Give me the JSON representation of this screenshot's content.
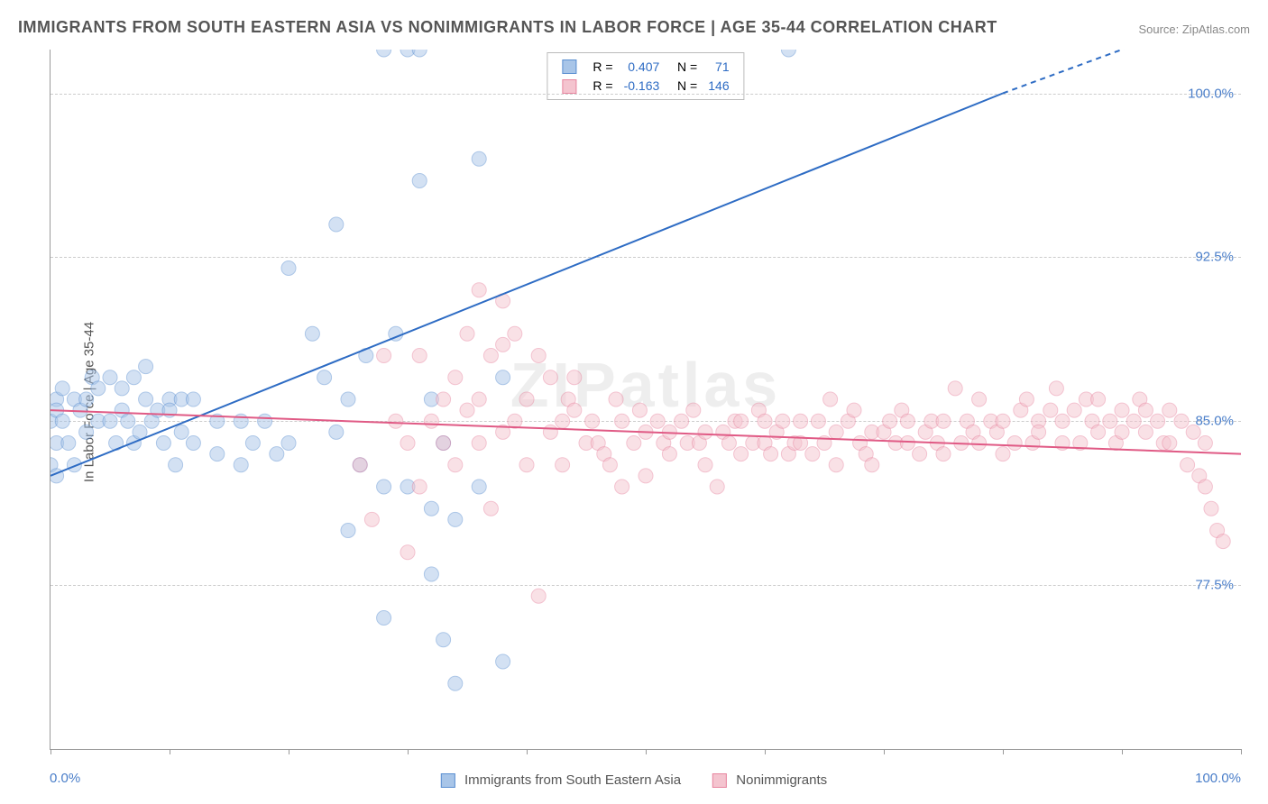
{
  "title": "IMMIGRANTS FROM SOUTH EASTERN ASIA VS NONIMMIGRANTS IN LABOR FORCE | AGE 35-44 CORRELATION CHART",
  "source": "Source: ZipAtlas.com",
  "watermark": "ZIPatlas",
  "ylabel": "In Labor Force | Age 35-44",
  "chart": {
    "type": "scatter-correlation",
    "xlim": [
      0,
      100
    ],
    "ylim": [
      70,
      102
    ],
    "xticks": [
      0,
      10,
      20,
      30,
      40,
      50,
      60,
      70,
      80,
      90,
      100
    ],
    "yticks": [
      {
        "v": 77.5,
        "label": "77.5%"
      },
      {
        "v": 85.0,
        "label": "85.0%"
      },
      {
        "v": 92.5,
        "label": "92.5%"
      },
      {
        "v": 100.0,
        "label": "100.0%"
      }
    ],
    "xaxis_label_left": "0.0%",
    "xaxis_label_right": "100.0%",
    "background_color": "#ffffff",
    "grid_color": "#cccccc",
    "marker_radius": 8,
    "marker_opacity": 0.5,
    "line_width": 2,
    "series": [
      {
        "name": "Immigrants from South Eastern Asia",
        "color_fill": "#a8c5e8",
        "color_stroke": "#5b8fd1",
        "line_color": "#2e6cc4",
        "R": "0.407",
        "N": "71",
        "trend": {
          "x1": 0,
          "y1": 82.5,
          "x2": 80,
          "y2": 100,
          "dashed_from_x": 80,
          "dashed_to_x": 100,
          "dashed_to_y": 104
        },
        "points": [
          [
            0,
            85
          ],
          [
            0.5,
            86
          ],
          [
            0.5,
            84
          ],
          [
            0.5,
            85.5
          ],
          [
            0,
            83
          ],
          [
            0.5,
            82.5
          ],
          [
            1,
            85
          ],
          [
            1,
            86.5
          ],
          [
            1.5,
            84
          ],
          [
            2,
            86
          ],
          [
            2,
            83
          ],
          [
            2.5,
            85.5
          ],
          [
            3,
            84.5
          ],
          [
            3,
            86
          ],
          [
            3.5,
            87
          ],
          [
            4,
            85
          ],
          [
            4,
            86.5
          ],
          [
            5,
            85
          ],
          [
            5,
            87
          ],
          [
            5.5,
            84
          ],
          [
            6,
            85.5
          ],
          [
            6,
            86.5
          ],
          [
            6.5,
            85
          ],
          [
            7,
            87
          ],
          [
            7,
            84
          ],
          [
            7.5,
            84.5
          ],
          [
            8,
            86
          ],
          [
            8,
            87.5
          ],
          [
            8.5,
            85
          ],
          [
            9,
            85.5
          ],
          [
            9.5,
            84
          ],
          [
            10,
            86
          ],
          [
            10,
            85.5
          ],
          [
            10.5,
            83
          ],
          [
            11,
            86
          ],
          [
            11,
            84.5
          ],
          [
            12,
            84
          ],
          [
            12,
            86
          ],
          [
            14,
            85
          ],
          [
            14,
            83.5
          ],
          [
            16,
            85
          ],
          [
            16,
            83
          ],
          [
            17,
            84
          ],
          [
            18,
            85
          ],
          [
            19,
            83.5
          ],
          [
            20,
            92
          ],
          [
            20,
            84
          ],
          [
            22,
            89
          ],
          [
            23,
            87
          ],
          [
            24,
            94
          ],
          [
            24,
            84.5
          ],
          [
            25,
            86
          ],
          [
            25,
            80
          ],
          [
            26,
            83
          ],
          [
            26.5,
            88
          ],
          [
            28,
            102
          ],
          [
            28,
            82
          ],
          [
            28,
            76
          ],
          [
            29,
            89
          ],
          [
            30,
            102
          ],
          [
            30,
            82
          ],
          [
            31,
            102
          ],
          [
            31,
            96
          ],
          [
            32,
            78
          ],
          [
            32,
            81
          ],
          [
            32,
            86
          ],
          [
            33,
            75
          ],
          [
            33,
            84
          ],
          [
            34,
            73
          ],
          [
            34,
            80.5
          ],
          [
            36,
            97
          ],
          [
            36,
            82
          ],
          [
            38,
            74
          ],
          [
            38,
            87
          ],
          [
            62,
            102
          ]
        ]
      },
      {
        "name": "Nonimmigrants",
        "color_fill": "#f4c4cf",
        "color_stroke": "#e886a0",
        "line_color": "#e05a85",
        "R": "-0.163",
        "N": "146",
        "trend": {
          "x1": 0,
          "y1": 85.5,
          "x2": 100,
          "y2": 83.5
        },
        "points": [
          [
            26,
            83
          ],
          [
            27,
            80.5
          ],
          [
            28,
            88
          ],
          [
            29,
            85
          ],
          [
            30,
            84
          ],
          [
            30,
            79
          ],
          [
            31,
            88
          ],
          [
            31,
            82
          ],
          [
            32,
            85
          ],
          [
            33,
            86
          ],
          [
            33,
            84
          ],
          [
            34,
            87
          ],
          [
            34,
            83
          ],
          [
            35,
            89
          ],
          [
            35,
            85.5
          ],
          [
            36,
            91
          ],
          [
            36,
            86
          ],
          [
            36,
            84
          ],
          [
            37,
            88
          ],
          [
            37,
            81
          ],
          [
            38,
            90.5
          ],
          [
            38,
            88.5
          ],
          [
            38,
            84.5
          ],
          [
            39,
            89
          ],
          [
            39,
            85
          ],
          [
            40,
            86
          ],
          [
            40,
            83
          ],
          [
            41,
            88
          ],
          [
            41,
            77
          ],
          [
            42,
            87
          ],
          [
            42,
            84.5
          ],
          [
            43,
            85
          ],
          [
            43,
            83
          ],
          [
            43.5,
            86
          ],
          [
            44,
            87
          ],
          [
            44,
            85.5
          ],
          [
            45,
            84
          ],
          [
            45.5,
            85
          ],
          [
            46,
            84
          ],
          [
            46.5,
            83.5
          ],
          [
            47,
            83
          ],
          [
            47.5,
            86
          ],
          [
            48,
            82
          ],
          [
            48,
            85
          ],
          [
            49,
            84
          ],
          [
            49.5,
            85.5
          ],
          [
            50,
            84.5
          ],
          [
            50,
            82.5
          ],
          [
            51,
            85
          ],
          [
            51.5,
            84
          ],
          [
            52,
            84.5
          ],
          [
            52,
            83.5
          ],
          [
            53,
            85
          ],
          [
            53.5,
            84
          ],
          [
            54,
            85.5
          ],
          [
            54.5,
            84
          ],
          [
            55,
            84.5
          ],
          [
            55,
            83
          ],
          [
            56,
            82
          ],
          [
            56.5,
            84.5
          ],
          [
            57,
            84
          ],
          [
            57.5,
            85
          ],
          [
            58,
            83.5
          ],
          [
            58,
            85
          ],
          [
            59,
            84
          ],
          [
            59.5,
            85.5
          ],
          [
            60,
            84
          ],
          [
            60,
            85
          ],
          [
            60.5,
            83.5
          ],
          [
            61,
            84.5
          ],
          [
            61.5,
            85
          ],
          [
            62,
            83.5
          ],
          [
            62.5,
            84
          ],
          [
            63,
            85
          ],
          [
            63,
            84
          ],
          [
            64,
            83.5
          ],
          [
            64.5,
            85
          ],
          [
            65,
            84
          ],
          [
            65.5,
            86
          ],
          [
            66,
            84.5
          ],
          [
            66,
            83
          ],
          [
            67,
            85
          ],
          [
            67.5,
            85.5
          ],
          [
            68,
            84
          ],
          [
            68.5,
            83.5
          ],
          [
            69,
            84.5
          ],
          [
            69,
            83
          ],
          [
            70,
            84.5
          ],
          [
            70.5,
            85
          ],
          [
            71,
            84
          ],
          [
            71.5,
            85.5
          ],
          [
            72,
            84
          ],
          [
            72,
            85
          ],
          [
            73,
            83.5
          ],
          [
            73.5,
            84.5
          ],
          [
            74,
            85
          ],
          [
            74.5,
            84
          ],
          [
            75,
            83.5
          ],
          [
            75,
            85
          ],
          [
            76,
            86.5
          ],
          [
            76.5,
            84
          ],
          [
            77,
            85
          ],
          [
            77.5,
            84.5
          ],
          [
            78,
            86
          ],
          [
            78,
            84
          ],
          [
            79,
            85
          ],
          [
            79.5,
            84.5
          ],
          [
            80,
            83.5
          ],
          [
            80,
            85
          ],
          [
            81,
            84
          ],
          [
            81.5,
            85.5
          ],
          [
            82,
            86
          ],
          [
            82.5,
            84
          ],
          [
            83,
            85
          ],
          [
            83,
            84.5
          ],
          [
            84,
            85.5
          ],
          [
            84.5,
            86.5
          ],
          [
            85,
            84
          ],
          [
            85,
            85
          ],
          [
            86,
            85.5
          ],
          [
            86.5,
            84
          ],
          [
            87,
            86
          ],
          [
            87.5,
            85
          ],
          [
            88,
            84.5
          ],
          [
            88,
            86
          ],
          [
            89,
            85
          ],
          [
            89.5,
            84
          ],
          [
            90,
            85.5
          ],
          [
            90,
            84.5
          ],
          [
            91,
            85
          ],
          [
            91.5,
            86
          ],
          [
            92,
            84.5
          ],
          [
            92,
            85.5
          ],
          [
            93,
            85
          ],
          [
            93.5,
            84
          ],
          [
            94,
            85.5
          ],
          [
            94,
            84
          ],
          [
            95,
            85
          ],
          [
            95.5,
            83
          ],
          [
            96,
            84.5
          ],
          [
            96.5,
            82.5
          ],
          [
            97,
            84
          ],
          [
            97,
            82
          ],
          [
            97.5,
            81
          ],
          [
            98,
            80
          ],
          [
            98.5,
            79.5
          ]
        ]
      }
    ]
  }
}
